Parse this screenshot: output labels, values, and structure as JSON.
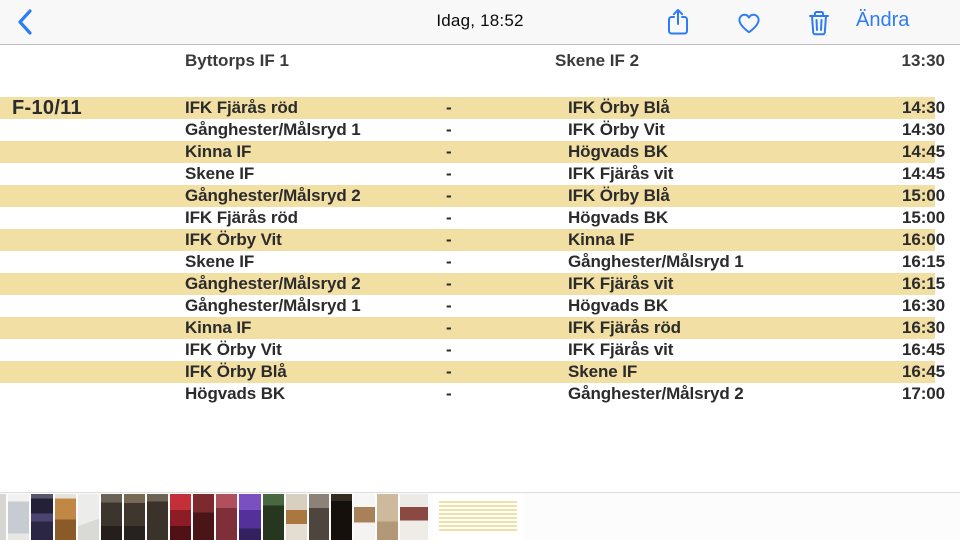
{
  "colors": {
    "accent": "#2e7cf5",
    "stripe": "#f2dfa4",
    "text": "#2b2b2b",
    "toolbar_bg": "#f8f8f8"
  },
  "toolbar": {
    "title": "Idag, 18:52",
    "edit_label": "Ändra",
    "icons": [
      "back-chevron",
      "share",
      "heart-favorite",
      "trash-delete"
    ]
  },
  "photo": {
    "separator": "-",
    "group_label": "F-10/11",
    "clipped_row": {
      "home": "Byttorps IF 1",
      "away": "Skene IF 2",
      "time": "13:30"
    },
    "matches": [
      {
        "home": "IFK Fjärås röd",
        "away": "IFK Örby Blå",
        "time": "14:30"
      },
      {
        "home": "Gånghester/Målsryd 1",
        "away": "IFK Örby Vit",
        "time": "14:30"
      },
      {
        "home": "Kinna IF",
        "away": "Högvads BK",
        "time": "14:45"
      },
      {
        "home": "Skene IF",
        "away": "IFK Fjärås vit",
        "time": "14:45"
      },
      {
        "home": "Gånghester/Målsryd 2",
        "away": "IFK Örby Blå",
        "time": "15:00"
      },
      {
        "home": "IFK Fjärås röd",
        "away": "Högvads BK",
        "time": "15:00"
      },
      {
        "home": "IFK Örby Vit",
        "away": "Kinna IF",
        "time": "16:00"
      },
      {
        "home": "Skene IF",
        "away": "Gånghester/Målsryd 1",
        "time": "16:15"
      },
      {
        "home": "Gånghester/Målsryd 2",
        "away": "IFK Fjärås vit",
        "time": "16:15"
      },
      {
        "home": "Gånghester/Målsryd 1",
        "away": "Högvads BK",
        "time": "16:30"
      },
      {
        "home": "Kinna IF",
        "away": "IFK Fjärås röd",
        "time": "16:30"
      },
      {
        "home": "IFK Örby Vit",
        "away": "IFK Fjärås vit",
        "time": "16:45"
      },
      {
        "home": "IFK Örby Blå",
        "away": "Skene IF",
        "time": "16:45"
      },
      {
        "home": "Högvads BK",
        "away": "Gånghester/Målsryd 2",
        "time": "17:00"
      }
    ]
  },
  "filmstrip": {
    "thumbs": [
      {
        "name": "thumb-document-sliver",
        "w": 6,
        "angle": "180deg",
        "colors": [
          "#d7d5d2 0% 100%"
        ]
      },
      {
        "name": "thumb-receipt-list",
        "w": 21,
        "angle": "180deg",
        "colors": [
          "#f2f1ef 0% 16%",
          "#c7ccd3 16% 86%",
          "#e8e7e4 86% 100%"
        ]
      },
      {
        "name": "thumb-app-screenshot",
        "w": 22,
        "angle": "180deg",
        "colors": [
          "#56566d 0% 10%",
          "#232038 10% 42%",
          "#4c4470 42% 60%",
          "#2a2644 60% 100%"
        ]
      },
      {
        "name": "thumb-crates",
        "w": 21,
        "angle": "180deg",
        "colors": [
          "#e7e3da 0% 10%",
          "#c08844 10% 55%",
          "#8a5a28 55% 100%"
        ]
      },
      {
        "name": "thumb-whiteboard",
        "w": 21,
        "angle": "160deg",
        "colors": [
          "#ececea 0% 60%",
          "#d9d9d5 60% 100%"
        ]
      },
      {
        "name": "thumb-party-warm-1",
        "w": 21,
        "angle": "180deg",
        "colors": [
          "#6a6257 0% 18%",
          "#3b352e 18% 70%",
          "#241f1c 70% 100%"
        ]
      },
      {
        "name": "thumb-party-warm-2",
        "w": 21,
        "angle": "180deg",
        "colors": [
          "#776a55 0% 20%",
          "#3f372e 20% 70%",
          "#262220 70% 100%"
        ]
      },
      {
        "name": "thumb-party-warm-3",
        "w": 21,
        "angle": "180deg",
        "colors": [
          "#6e6352 0% 16%",
          "#3a332c 16% 100%"
        ]
      },
      {
        "name": "thumb-party-red-bright",
        "w": 21,
        "angle": "180deg",
        "colors": [
          "#c4303a 0% 35%",
          "#8e1c26 35% 70%",
          "#4f1016 70% 100%"
        ]
      },
      {
        "name": "thumb-party-red-dark",
        "w": 21,
        "angle": "180deg",
        "colors": [
          "#7c2a2e 0% 40%",
          "#4a1519 40% 100%"
        ]
      },
      {
        "name": "thumb-party-pink",
        "w": 21,
        "angle": "180deg",
        "colors": [
          "#b0505c 0% 30%",
          "#7e2f3a 30% 100%"
        ]
      },
      {
        "name": "thumb-party-purple",
        "w": 22,
        "angle": "180deg",
        "colors": [
          "#7a4fc0 0% 35%",
          "#53309a 35% 75%",
          "#33205e 75% 100%"
        ]
      },
      {
        "name": "thumb-party-green",
        "w": 21,
        "angle": "180deg",
        "colors": [
          "#49683f 0% 25%",
          "#26361f 25% 100%"
        ]
      },
      {
        "name": "thumb-drink-closeup",
        "w": 21,
        "angle": "180deg",
        "colors": [
          "#d8cfc0 0% 35%",
          "#a9773f 35% 65%",
          "#e3ddd2 65% 100%"
        ]
      },
      {
        "name": "thumb-person-dark",
        "w": 20,
        "angle": "180deg",
        "colors": [
          "#8d8278 0% 30%",
          "#4e463e 30% 100%"
        ]
      },
      {
        "name": "thumb-bottle-dark",
        "w": 21,
        "angle": "180deg",
        "colors": [
          "#342a20 0% 15%",
          "#15100c 15% 100%"
        ]
      },
      {
        "name": "thumb-instagram-post",
        "w": 21,
        "angle": "180deg",
        "colors": [
          "#f6f6f4 0% 28%",
          "#a8805a 28% 62%",
          "#f4f3f1 62% 100%"
        ]
      },
      {
        "name": "thumb-note-paper",
        "w": 21,
        "angle": "180deg",
        "colors": [
          "#cdb99c 0% 60%",
          "#b29877 60% 100%"
        ]
      },
      {
        "name": "thumb-watch-closeup",
        "w": 28,
        "angle": "180deg",
        "colors": [
          "#eceae6 0% 28%",
          "#8a4a42 28% 58%",
          "#efece8 58% 100%"
        ]
      }
    ],
    "selected": {
      "name": "thumb-selected-schedule",
      "w": 90,
      "stripe_color": "#f2dfa4",
      "bg": "#ffffff"
    }
  }
}
